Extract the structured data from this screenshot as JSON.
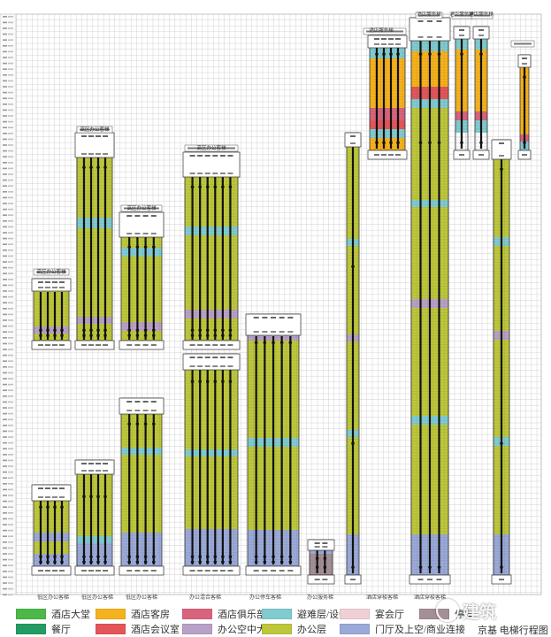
{
  "palette": {
    "hotel_lobby": "#4cb848",
    "hotel_rooms": "#f5b21c",
    "hotel_club": "#d9637d",
    "refuge_mech": "#7fcbd0",
    "banquet": "#efd0d5",
    "parking_unknown": "#a48f96",
    "restaurant": "#239c64",
    "hotel_meeting": "#e4555a",
    "office_atrium": "#b9a0c6",
    "office": "#bdc73a",
    "lobby_link": "#9aa9d8"
  },
  "legend": [
    {
      "label": "酒店大堂",
      "color_key": "hotel_lobby"
    },
    {
      "label": "酒店客房",
      "color_key": "hotel_rooms"
    },
    {
      "label": "酒店俱乐部",
      "color_key": "hotel_club"
    },
    {
      "label": "避难层/设备层",
      "color_key": "refuge_mech"
    },
    {
      "label": "宴会厅",
      "color_key": "banquet"
    },
    {
      "label": "停车",
      "color_key": "parking_unknown"
    },
    {
      "label": "餐厅",
      "color_key": "restaurant"
    },
    {
      "label": "酒店会议室",
      "color_key": "hotel_meeting"
    },
    {
      "label": "办公空中大堂",
      "color_key": "office_atrium"
    },
    {
      "label": "办公层",
      "color_key": "office"
    },
    {
      "label": "门厅及上空/商业连接",
      "color_key": "lobby_link"
    }
  ],
  "diagram_title": "京基 电梯行程图",
  "watermark": "建筑",
  "group_labels_bottom": [
    "低区办公客梯",
    "低区办公客梯",
    "低区办公客梯",
    "办公混合客梯",
    "办公停车客梯",
    "办公服务梯",
    "酒店穿梭客梯",
    "酒店穿梭客梯"
  ],
  "group_labels_top": [
    "高区办公客梯",
    "高区办公客梯",
    "高区办公客梯",
    "高区办公客梯",
    "酒店服务梯",
    "酒店服务梯",
    "酒店服务梯",
    "酒店服务梯"
  ]
}
